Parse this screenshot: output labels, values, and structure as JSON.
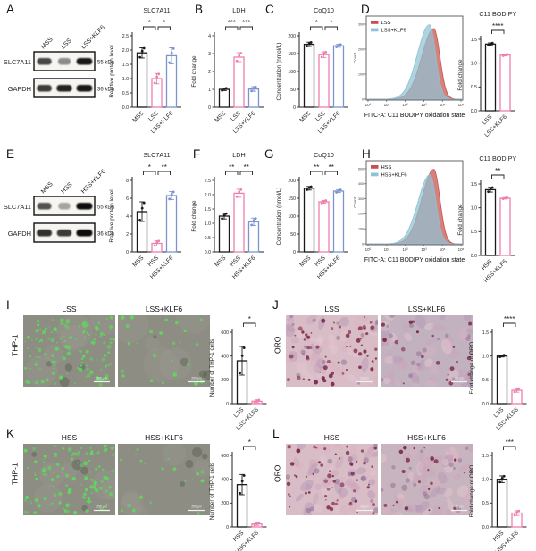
{
  "panel_labels": {
    "A": "A",
    "B": "B",
    "C": "C",
    "D": "D",
    "E": "E",
    "F": "F",
    "G": "G",
    "H": "H",
    "I": "I",
    "J": "J",
    "K": "K",
    "L": "L"
  },
  "colors": {
    "black": "#1a1a1a",
    "pink": "#ee7fae",
    "blue": "#7b94ce",
    "flow_red": "#c8504a",
    "flow_blue": "#8fc2d6"
  },
  "blots": [
    {
      "id": "A",
      "lanes": [
        "MSS",
        "LSS",
        "LSS+KLF6"
      ],
      "rows": [
        {
          "protein": "SLC7A11",
          "weight": "55 kDa",
          "bands": [
            0.75,
            0.45,
            0.95
          ]
        },
        {
          "protein": "GAPDH",
          "weight": "36 kDa",
          "bands": [
            0.8,
            0.9,
            0.95
          ]
        }
      ]
    },
    {
      "id": "E",
      "lanes": [
        "MSS",
        "HSS",
        "HSS+KLF6"
      ],
      "rows": [
        {
          "protein": "SLC7A11",
          "weight": "55 kDa",
          "bands": [
            0.7,
            0.35,
            1.0
          ]
        },
        {
          "protein": "GAPDH",
          "weight": "36 kDa",
          "bands": [
            0.85,
            0.8,
            1.0
          ]
        }
      ]
    }
  ],
  "chart_data": [
    {
      "id": "A",
      "type": "bar",
      "title": "SLC7A11",
      "ylabel": "Relative protein level",
      "categories": [
        "MSS",
        "LSS",
        "LSS+KLF6"
      ],
      "values": [
        1.9,
        1.0,
        1.8
      ],
      "err": [
        0.18,
        0.18,
        0.28
      ],
      "colors": [
        "black",
        "pink",
        "blue"
      ],
      "ymax": 2.5,
      "yticks": [
        "0.0",
        "0.5",
        "1.0",
        "1.5",
        "2.0",
        "2.5"
      ],
      "sig": [
        {
          "a": 0,
          "b": 1,
          "label": "*"
        },
        {
          "a": 1,
          "b": 2,
          "label": "*"
        }
      ]
    },
    {
      "id": "B",
      "type": "bar",
      "title": "LDH",
      "ylabel": "Fold change",
      "categories": [
        "MSS",
        "LSS",
        "LSS+KLF6"
      ],
      "values": [
        1.0,
        2.8,
        1.02
      ],
      "err": [
        0.07,
        0.25,
        0.13
      ],
      "colors": [
        "black",
        "pink",
        "blue"
      ],
      "ymax": 4,
      "yticks": [
        "0",
        "1",
        "2",
        "3",
        "4"
      ],
      "sig": [
        {
          "a": 0,
          "b": 1,
          "label": "***"
        },
        {
          "a": 1,
          "b": 2,
          "label": "***"
        }
      ]
    },
    {
      "id": "C",
      "type": "bar",
      "title": "CoQ10",
      "ylabel": "Concentration (nmol/L)",
      "categories": [
        "MSS",
        "LSS",
        "LSS+KLF6"
      ],
      "values": [
        176,
        147,
        172
      ],
      "err": [
        6,
        8,
        4
      ],
      "colors": [
        "black",
        "pink",
        "blue"
      ],
      "ymax": 200,
      "yticks": [
        "0",
        "50",
        "100",
        "150",
        "200"
      ],
      "sig": [
        {
          "a": 0,
          "b": 1,
          "label": "*"
        },
        {
          "a": 1,
          "b": 2,
          "label": "*"
        }
      ]
    },
    {
      "id": "D",
      "type": "bar",
      "title": "C11 BODIPY",
      "ylabel": "Fold change",
      "categories": [
        "LSS",
        "LSS+KLF6"
      ],
      "values": [
        1.4,
        1.17
      ],
      "err": [
        0.025,
        0.02
      ],
      "colors": [
        "black",
        "pink"
      ],
      "ymax": 1.5,
      "yticks": [
        "0.0",
        "0.5",
        "1.0",
        "1.5"
      ],
      "sig": [
        {
          "a": 0,
          "b": 1,
          "label": "****"
        }
      ]
    },
    {
      "id": "E",
      "type": "bar",
      "title": "SLC7A11",
      "ylabel": "Relative protein level",
      "categories": [
        "MSS",
        "HSS",
        "HSS+KLF6"
      ],
      "values": [
        4.5,
        0.95,
        6.3
      ],
      "err": [
        1.1,
        0.3,
        0.45
      ],
      "colors": [
        "black",
        "pink",
        "blue"
      ],
      "ymax": 8,
      "yticks": [
        "0",
        "2",
        "4",
        "6",
        "8"
      ],
      "sig": [
        {
          "a": 0,
          "b": 1,
          "label": "*"
        },
        {
          "a": 1,
          "b": 2,
          "label": "**"
        }
      ]
    },
    {
      "id": "F",
      "type": "bar",
      "title": "LDH",
      "ylabel": "Fold change",
      "categories": [
        "MSS",
        "HSS",
        "HSS+KLF6"
      ],
      "values": [
        1.25,
        2.05,
        1.05
      ],
      "err": [
        0.1,
        0.14,
        0.13
      ],
      "colors": [
        "black",
        "pink",
        "blue"
      ],
      "ymax": 2.5,
      "yticks": [
        "0.0",
        "0.5",
        "1.0",
        "1.5",
        "2.0",
        "2.5"
      ],
      "sig": [
        {
          "a": 0,
          "b": 1,
          "label": "**"
        },
        {
          "a": 1,
          "b": 2,
          "label": "**"
        }
      ]
    },
    {
      "id": "G",
      "type": "bar",
      "title": "CoQ10",
      "ylabel": "Concentration (nmol/L)",
      "categories": [
        "MSS",
        "HSS",
        "HSS+KLF6"
      ],
      "values": [
        178,
        140,
        170
      ],
      "err": [
        5,
        4,
        4
      ],
      "colors": [
        "black",
        "pink",
        "blue"
      ],
      "ymax": 200,
      "yticks": [
        "0",
        "50",
        "100",
        "150",
        "200"
      ],
      "sig": [
        {
          "a": 0,
          "b": 1,
          "label": "**"
        },
        {
          "a": 1,
          "b": 2,
          "label": "**"
        }
      ]
    },
    {
      "id": "H",
      "type": "bar",
      "title": "C11 BODIPY",
      "ylabel": "Fold change",
      "categories": [
        "HSS",
        "HSS+KLF6"
      ],
      "values": [
        1.38,
        1.2
      ],
      "err": [
        0.05,
        0.015
      ],
      "colors": [
        "black",
        "pink"
      ],
      "ymax": 1.5,
      "yticks": [
        "0.0",
        "0.5",
        "1.0",
        "1.5"
      ],
      "sig": [
        {
          "a": 0,
          "b": 1,
          "label": "**"
        }
      ]
    },
    {
      "id": "I",
      "type": "bar",
      "title": "",
      "ylabel": "Number of THP-1 cells",
      "categories": [
        "LSS",
        "LSS+KLF6"
      ],
      "values": [
        360,
        20
      ],
      "err": [
        120,
        12
      ],
      "colors": [
        "black",
        "pink"
      ],
      "ymax": 600,
      "yticks": [
        "0",
        "200",
        "400",
        "600"
      ],
      "sig": [
        {
          "a": 0,
          "b": 1,
          "label": "*"
        }
      ]
    },
    {
      "id": "J",
      "type": "bar",
      "title": "",
      "ylabel": "Fold change of ORO",
      "categories": [
        "LSS",
        "LSS+KLF6"
      ],
      "values": [
        1.0,
        0.28
      ],
      "err": [
        0.02,
        0.04
      ],
      "colors": [
        "black",
        "pink"
      ],
      "ymax": 1.5,
      "yticks": [
        "0.0",
        "0.5",
        "1.0",
        "1.5"
      ],
      "sig": [
        {
          "a": 0,
          "b": 1,
          "label": "****"
        }
      ]
    },
    {
      "id": "K",
      "type": "bar",
      "title": "",
      "ylabel": "Number of THP-1 cells",
      "categories": [
        "HSS",
        "HSS+KLF6"
      ],
      "values": [
        355,
        25
      ],
      "err": [
        85,
        12
      ],
      "colors": [
        "black",
        "pink"
      ],
      "ymax": 600,
      "yticks": [
        "0",
        "200",
        "400",
        "600"
      ],
      "sig": [
        {
          "a": 0,
          "b": 1,
          "label": "*"
        }
      ]
    },
    {
      "id": "L",
      "type": "bar",
      "title": "",
      "ylabel": "Fold change of ORO",
      "categories": [
        "HSS",
        "HSS+KLF6"
      ],
      "values": [
        1.0,
        0.29
      ],
      "err": [
        0.07,
        0.05
      ],
      "colors": [
        "black",
        "pink"
      ],
      "ymax": 1.5,
      "yticks": [
        "0.0",
        "0.5",
        "1.0",
        "1.5"
      ],
      "sig": [
        {
          "a": 0,
          "b": 1,
          "label": "***"
        }
      ]
    },
    {
      "id": "Dflow",
      "type": "histogram",
      "legend": [
        {
          "label": "LSS",
          "color": "flow_red"
        },
        {
          "label": "LSS+KLF6",
          "color": "flow_blue"
        }
      ],
      "ylabel": "Count",
      "yticks": [
        "0",
        "100",
        "200",
        "300"
      ],
      "xticks": [
        "10⁰",
        "10¹",
        "10²",
        "10³",
        "10⁴",
        "10⁵"
      ],
      "xlabel": "FITC-A: C11 BODIPY oxidation state",
      "series": [
        {
          "name": "LSS",
          "color": "flow_red",
          "mu": 0.7,
          "peak": 0.92
        },
        {
          "name": "LSS+KLF6",
          "color": "flow_blue",
          "mu": 0.655,
          "peak": 0.97
        }
      ]
    },
    {
      "id": "Hflow",
      "type": "histogram",
      "legend": [
        {
          "label": "HSS",
          "color": "flow_red"
        },
        {
          "label": "HSS+KLF6",
          "color": "flow_blue"
        }
      ],
      "ylabel": "Count",
      "yticks": [
        "0",
        "100",
        "200",
        "300",
        "400",
        "500"
      ],
      "xticks": [
        "10⁰",
        "10¹",
        "10²",
        "10³",
        "10⁴",
        "10⁵"
      ],
      "xlabel": "FITC-A: C11 BODIPY oxidation state",
      "series": [
        {
          "name": "HSS",
          "color": "flow_red",
          "mu": 0.7,
          "peak": 0.97
        },
        {
          "name": "HSS+KLF6",
          "color": "flow_blue",
          "mu": 0.66,
          "peak": 0.9
        }
      ]
    }
  ],
  "micro": [
    {
      "id": "I",
      "row_label": "THP-1",
      "kind": "fluor",
      "scale_bar": "250 μm",
      "images": [
        {
          "title": "LSS",
          "density": 130,
          "bg": "#8d8d83"
        },
        {
          "title": "LSS+KLF6",
          "density": 26,
          "bg": "#8d8d83"
        }
      ]
    },
    {
      "id": "J",
      "row_label": "ORO",
      "kind": "oro",
      "scale_bar": "25 μm",
      "images": [
        {
          "title": "LSS",
          "density": 60,
          "bg": "#d9bdc6"
        },
        {
          "title": "LSS+KLF6",
          "density": 20,
          "bg": "#c2b2c0"
        }
      ]
    },
    {
      "id": "K",
      "row_label": "THP-1",
      "kind": "fluor",
      "scale_bar": "250 μm",
      "images": [
        {
          "title": "HSS",
          "density": 115,
          "bg": "#8d8d83"
        },
        {
          "title": "HSS+KLF6",
          "density": 20,
          "bg": "#8d8d83"
        }
      ]
    },
    {
      "id": "L",
      "row_label": "ORO",
      "kind": "oro",
      "scale_bar": "25 μm",
      "images": [
        {
          "title": "HSS",
          "density": 55,
          "bg": "#d9bdc6"
        },
        {
          "title": "HSS+KLF6",
          "density": 22,
          "bg": "#c8b4be"
        }
      ]
    }
  ]
}
